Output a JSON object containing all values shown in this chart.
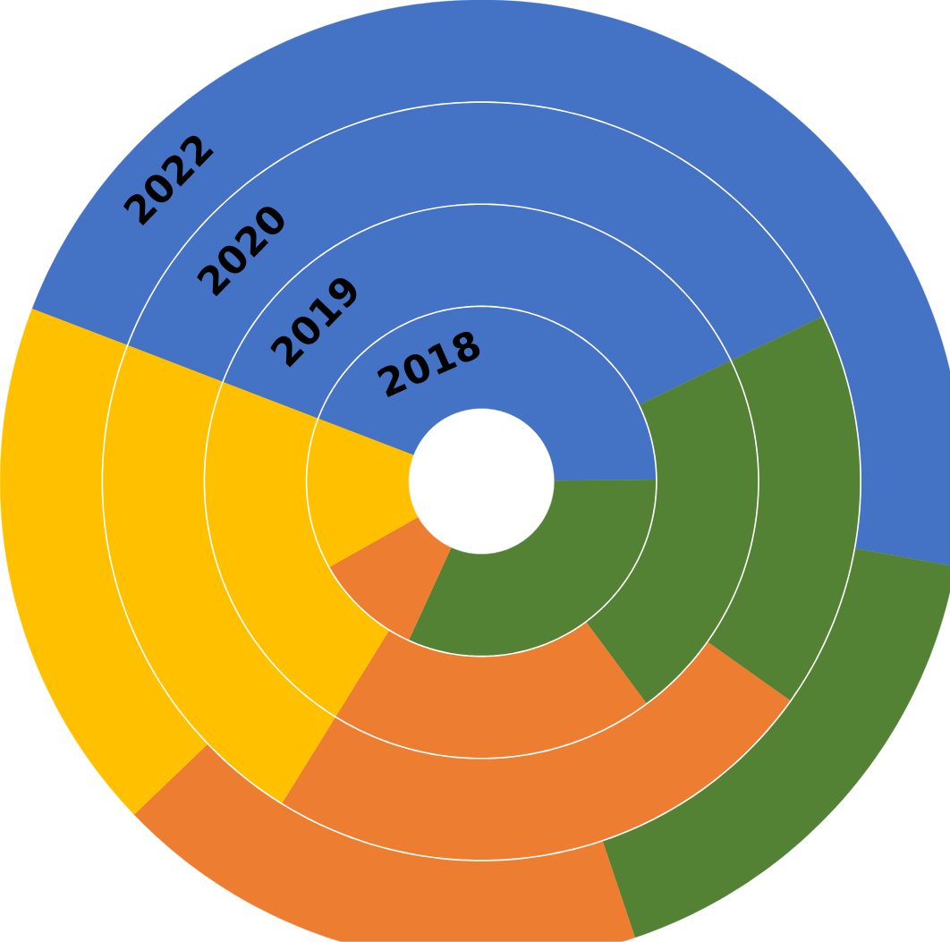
{
  "chart_data": {
    "type": "donut",
    "categories": [
      null,
      null,
      null,
      null
    ],
    "colors": [
      "#4472c4",
      "#548235",
      "#ed7d31",
      "#ffc000"
    ],
    "series": [
      {
        "name": "2018",
        "values": [
          44,
          32,
          10,
          14
        ]
      },
      {
        "name": "2019",
        "values": [
          37,
          22,
          19,
          22
        ]
      },
      {
        "name": "2020",
        "values": [
          37,
          17,
          24,
          22
        ]
      },
      {
        "name": "2022",
        "values": [
          47,
          17,
          18,
          18
        ]
      }
    ]
  }
}
